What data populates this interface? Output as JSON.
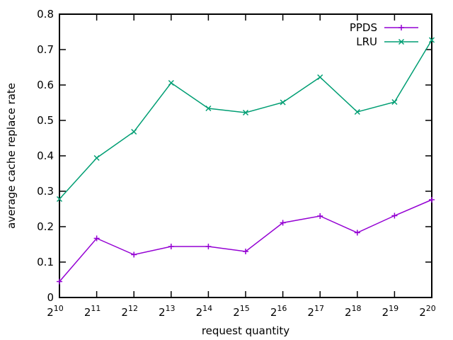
{
  "chart_data": {
    "type": "line",
    "xlabel": "request quantity",
    "ylabel": "average cache replace rate",
    "x_base": "2",
    "x_exponents": [
      "10",
      "11",
      "12",
      "13",
      "14",
      "15",
      "16",
      "17",
      "18",
      "19",
      "20"
    ],
    "ylim": [
      0,
      0.8
    ],
    "y_ticks": [
      "0",
      "0.1",
      "0.2",
      "0.3",
      "0.4",
      "0.5",
      "0.6",
      "0.7",
      "0.8"
    ],
    "grid": false,
    "legend_position": "top-right",
    "series": [
      {
        "name": "PPDS",
        "color": "#9400d3",
        "marker": "plus",
        "values": [
          0.045,
          0.167,
          0.121,
          0.144,
          0.144,
          0.13,
          0.211,
          0.23,
          0.183,
          0.231,
          0.276
        ]
      },
      {
        "name": "LRU",
        "color": "#009e73",
        "marker": "cross",
        "values": [
          0.278,
          0.394,
          0.468,
          0.606,
          0.534,
          0.522,
          0.551,
          0.622,
          0.524,
          0.552,
          0.727
        ]
      }
    ]
  }
}
